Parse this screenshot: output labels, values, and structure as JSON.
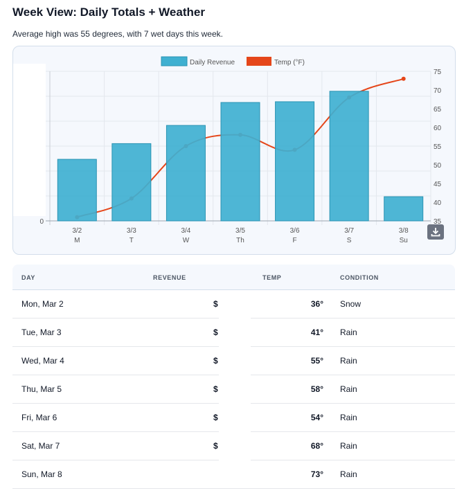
{
  "header": {
    "title": "Week View: Daily Totals + Weather",
    "subtitle": "Average high was 55 degrees, with 7 wet days this week."
  },
  "chart_data": {
    "type": "bar+line",
    "categories": [
      "3/2",
      "3/3",
      "3/4",
      "3/5",
      "3/6",
      "3/7",
      "3/8"
    ],
    "category_sublabels": [
      "M",
      "T",
      "W",
      "Th",
      "F",
      "S",
      "Su"
    ],
    "legend": {
      "position": "top",
      "entries": [
        "Daily Revenue",
        "Temp (°F)"
      ]
    },
    "series": [
      {
        "name": "Daily Revenue",
        "type": "bar",
        "axis": "left",
        "color": "#3fb0d1",
        "values_relative_to_left_gridlines": [
          2.47,
          3.1,
          3.83,
          4.75,
          4.78,
          5.2,
          0.97
        ]
      },
      {
        "name": "Temp (°F)",
        "type": "line",
        "axis": "right",
        "color": "#e5461a",
        "values": [
          36,
          41,
          55,
          58,
          54,
          68,
          73
        ]
      }
    ],
    "left_axis": {
      "visible_tick": "0",
      "ylim": [
        0,
        6
      ]
    },
    "right_axis": {
      "ticks": [
        "75",
        "70",
        "65",
        "60",
        "55",
        "50",
        "45",
        "40",
        "35"
      ],
      "ylim": [
        35,
        75
      ]
    },
    "grid": true
  },
  "download_icon": "download-icon",
  "table": {
    "headers": [
      "DAY",
      "REVENUE",
      "TEMP",
      "CONDITION"
    ],
    "rows": [
      {
        "day": "Mon, Mar 2",
        "revenue": "$",
        "temp": "36°",
        "condition": "Snow"
      },
      {
        "day": "Tue, Mar 3",
        "revenue": "$",
        "temp": "41°",
        "condition": "Rain"
      },
      {
        "day": "Wed, Mar 4",
        "revenue": "$",
        "temp": "55°",
        "condition": "Rain"
      },
      {
        "day": "Thu, Mar 5",
        "revenue": "$",
        "temp": "58°",
        "condition": "Rain"
      },
      {
        "day": "Fri, Mar 6",
        "revenue": "$",
        "temp": "54°",
        "condition": "Rain"
      },
      {
        "day": "Sat, Mar 7",
        "revenue": "$",
        "temp": "68°",
        "condition": "Rain"
      },
      {
        "day": "Sun, Mar 8",
        "revenue": "",
        "temp": "73°",
        "condition": "Rain"
      }
    ]
  }
}
